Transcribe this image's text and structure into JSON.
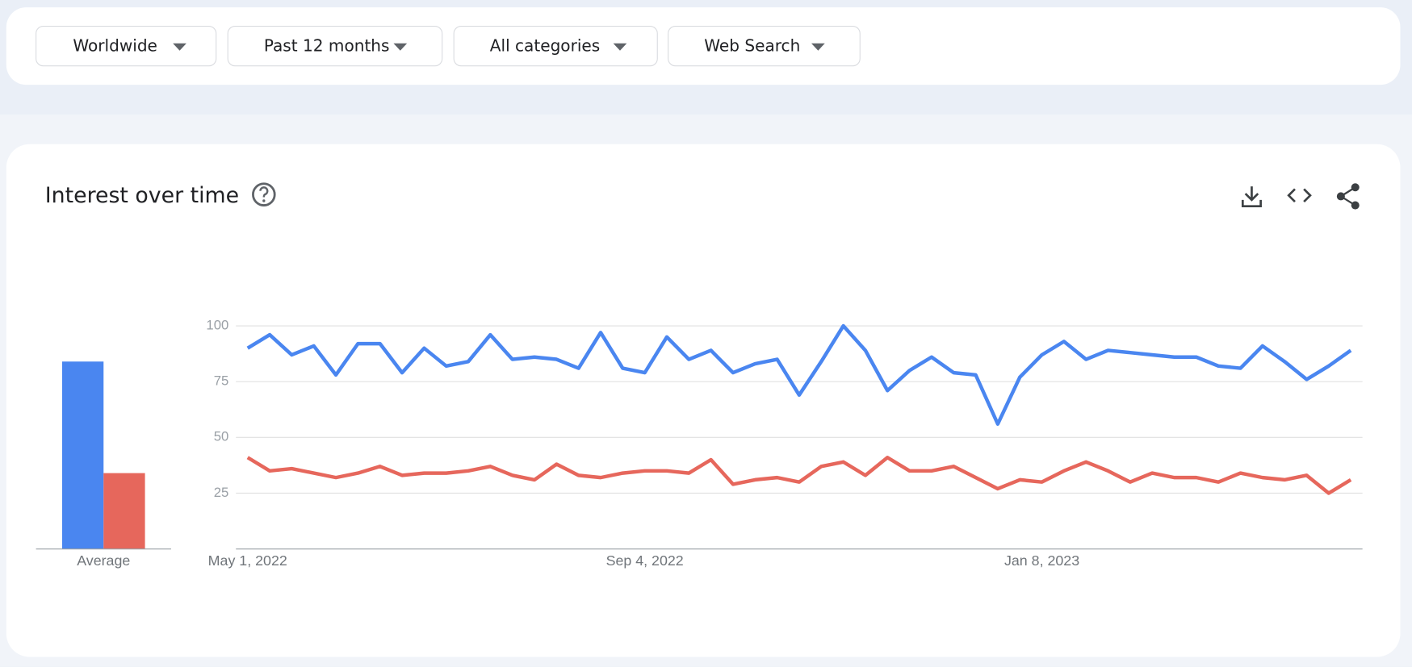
{
  "filters": [
    "Worldwide",
    "Past 12 months",
    "All categories",
    "Web Search"
  ],
  "card": {
    "title": "Interest over time"
  },
  "chart_data": [
    {
      "type": "bar",
      "categories": [
        "Average"
      ],
      "series": [
        {
          "color": "#4a86f0",
          "values": [
            84
          ]
        },
        {
          "color": "#e6675c",
          "values": [
            34
          ]
        }
      ],
      "ylim": [
        0,
        100
      ]
    },
    {
      "type": "line",
      "categories": [
        "May 1, 2022",
        null,
        null,
        null,
        null,
        null,
        null,
        null,
        null,
        null,
        null,
        null,
        null,
        null,
        null,
        null,
        null,
        null,
        "Sep 4, 2022",
        null,
        null,
        null,
        null,
        null,
        null,
        null,
        null,
        null,
        null,
        null,
        null,
        null,
        null,
        null,
        null,
        null,
        "Jan 8, 2023",
        null,
        null,
        null,
        null,
        null,
        null,
        null,
        null,
        null,
        null,
        null,
        null,
        null,
        null
      ],
      "series": [
        {
          "color": "#4a86f0",
          "values": [
            90,
            96,
            87,
            91,
            78,
            92,
            92,
            79,
            90,
            82,
            84,
            96,
            85,
            86,
            85,
            81,
            97,
            81,
            79,
            95,
            85,
            89,
            79,
            83,
            85,
            69,
            84,
            100,
            89,
            71,
            80,
            86,
            79,
            78,
            56,
            77,
            87,
            93,
            85,
            89,
            88,
            87,
            86,
            86,
            82,
            81,
            91,
            84,
            76,
            82,
            89
          ]
        },
        {
          "color": "#e6675c",
          "values": [
            41,
            35,
            36,
            34,
            32,
            34,
            37,
            33,
            34,
            34,
            35,
            37,
            33,
            31,
            38,
            33,
            32,
            34,
            35,
            35,
            34,
            40,
            29,
            31,
            32,
            30,
            37,
            39,
            33,
            41,
            35,
            35,
            37,
            32,
            27,
            31,
            30,
            35,
            39,
            35,
            30,
            34,
            32,
            32,
            30,
            34,
            32,
            31,
            33,
            25,
            31
          ]
        }
      ],
      "ylim": [
        0,
        100
      ],
      "yticks": [
        25,
        50,
        75,
        100
      ],
      "grid": true
    }
  ]
}
